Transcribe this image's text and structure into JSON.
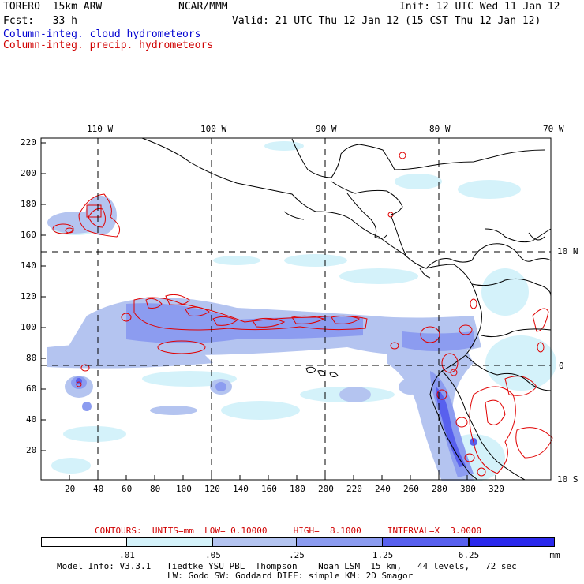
{
  "header": {
    "model": "TORERO  15km ARW",
    "center": "NCAR/MMM",
    "init": "Init: 12 UTC Wed 11 Jan 12",
    "forecast": "Fcst:   33 h",
    "valid": "Valid: 21 UTC Thu 12 Jan 12 (15 CST Thu 12 Jan 12)",
    "field_cloud": "Column-integ. cloud hydrometeors",
    "field_precip": "Column-integ. precip. hydrometeors"
  },
  "colors": {
    "cloud_label": "#0000d0",
    "precip_label": "#d00000",
    "contour": "#e00000",
    "fill_1": "#d4f2fa",
    "fill_2": "#b4c4f0",
    "fill_3": "#8c9cf0",
    "fill_4": "#5860ee",
    "fill_5": "#2a28ec"
  },
  "map": {
    "lon_labels": [
      "110 W",
      "100 W",
      "90 W",
      "80 W",
      "70 W"
    ],
    "lat_labels": [
      "10 N",
      "0",
      "10 S"
    ],
    "y_ticks": [
      "220",
      "200",
      "180",
      "160",
      "140",
      "120",
      "100",
      "80",
      "60",
      "40",
      "20"
    ],
    "x_ticks": [
      "20",
      "40",
      "60",
      "80",
      "100",
      "120",
      "140",
      "160",
      "180",
      "200",
      "220",
      "240",
      "260",
      "280",
      "300",
      "320"
    ]
  },
  "contour_info": "CONTOURS:  UNITS=mm  LOW= 0.10000     HIGH=  8.1000     INTERVAL=X  3.0000",
  "legend": {
    "units": "mm",
    "labels": [
      ".01",
      ".05",
      ".25",
      "1.25",
      "6.25"
    ]
  },
  "footer": {
    "line1": "Model Info: V3.3.1   Tiedtke YSU PBL  Thompson    Noah LSM  15 km,   44 levels,   72 sec",
    "line2": "LW: Godd SW: Goddard DIFF: simple KM: 2D Smagor"
  }
}
